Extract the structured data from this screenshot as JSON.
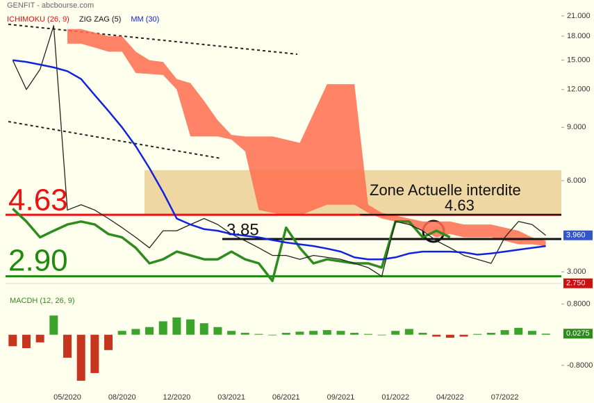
{
  "chart_data": {
    "type": "stock",
    "title": "GENFIT - abcbourse.com",
    "legend": [
      {
        "text": "ICHIMOKU (26, 9)",
        "color": "#dd1111"
      },
      {
        "text": "ZIG ZAG (5)",
        "color": "#111111"
      },
      {
        "text": "MM (30)",
        "color": "#1122dd"
      }
    ],
    "log_scale": true,
    "categories": [
      null,
      null,
      null,
      null,
      "05/2020",
      null,
      null,
      null,
      "08/2020",
      null,
      null,
      null,
      "12/2020",
      null,
      null,
      null,
      "03/2021",
      null,
      null,
      null,
      "06/2021",
      null,
      null,
      null,
      "09/2021",
      null,
      null,
      null,
      "01/2022",
      null,
      null,
      null,
      "04/2022",
      null,
      null,
      null,
      "07/2022",
      null,
      null,
      null
    ],
    "ylim": [
      2.79,
      23.7
    ],
    "yticks": [
      {
        "value": 3,
        "label": "3.000"
      },
      {
        "value": 6,
        "label": "6.000"
      },
      {
        "value": 9,
        "label": "9.000"
      },
      {
        "value": 12,
        "label": "12.000"
      },
      {
        "value": 15,
        "label": "15.000"
      },
      {
        "value": 18,
        "label": "18.000"
      },
      {
        "value": 21,
        "label": "21.000"
      }
    ],
    "series": [
      {
        "color": "#222222",
        "values": [
          15,
          12,
          14,
          19.5,
          4.8,
          5.0,
          4.8,
          4.5,
          4.2,
          3.9,
          3.6,
          4.1,
          4.1,
          4.3,
          4.5,
          4.3,
          4.0,
          3.8,
          3.6,
          3.4,
          3.4,
          3.3,
          3.4,
          3.35,
          3.3,
          3.2,
          3.1,
          2.9,
          4.4,
          4.3,
          4.1,
          3.8,
          3.6,
          3.4,
          3.3,
          3.2,
          3.9,
          4.4,
          4.3,
          3.96
        ]
      },
      {
        "color": "#1122dd",
        "values": [
          15,
          14.8,
          14.5,
          14.2,
          13.8,
          13.0,
          11.5,
          10.2,
          9.0,
          7.8,
          6.6,
          5.5,
          4.5,
          4.3,
          4.15,
          4.1,
          4.0,
          3.95,
          3.9,
          3.82,
          3.75,
          3.7,
          3.65,
          3.58,
          3.5,
          3.35,
          3.3,
          3.3,
          3.35,
          3.45,
          3.5,
          3.5,
          3.5,
          3.48,
          3.42,
          3.45,
          3.5,
          3.55,
          3.6,
          3.65
        ]
      },
      {
        "color": "#ff6f4f",
        "values": [
          null,
          null,
          null,
          null,
          19,
          19,
          18.5,
          18,
          18,
          16,
          15,
          14.8,
          13,
          12.6,
          11,
          9.5,
          8.5,
          8.4,
          8.4,
          8.4,
          8.2,
          8,
          10,
          12.5,
          12.5,
          12.5,
          5,
          4.7,
          4.6,
          4.5,
          4.4,
          4.4,
          4.4,
          4.3,
          4.3,
          4.3,
          4.2,
          4.1,
          3.9,
          3.8
        ],
        "lower": [
          null,
          null,
          null,
          null,
          17,
          17,
          16.5,
          16,
          16,
          13.6,
          13.5,
          13.4,
          12,
          8.4,
          8.4,
          8.4,
          8.2,
          7.5,
          4.8,
          4.7,
          4.6,
          4.6,
          4.8,
          5,
          5,
          5,
          4.7,
          4.5,
          4.4,
          4.3,
          4.1,
          3.9,
          4.0,
          3.9,
          3.9,
          3.9,
          3.8,
          3.7,
          3.7,
          3.65
        ]
      },
      {
        "color": "#2e8b1e",
        "values": [
          4.85,
          4.4,
          3.9,
          4.1,
          4.3,
          4.4,
          4.3,
          4.0,
          3.9,
          3.6,
          3.2,
          3.3,
          3.5,
          3.4,
          3.3,
          3.3,
          3.5,
          3.3,
          3.2,
          2.8,
          4.2,
          3.6,
          3.2,
          3.3,
          3.25,
          3.2,
          3.2,
          3.1,
          4.4,
          4.4,
          3.9,
          4.1,
          3.9,
          null,
          null,
          null,
          null,
          null,
          null,
          null
        ]
      }
    ],
    "levels": [
      {
        "label": "4.63",
        "value": 4.63,
        "color": "#ee1111"
      },
      {
        "label": "2.90",
        "value": 2.9,
        "color": "#1f8a10"
      },
      {
        "label": "3.85",
        "value": 3.85,
        "color": "#111111"
      },
      {
        "label": "4.63",
        "value": 4.63,
        "color": "#111111"
      }
    ],
    "zone": {
      "label": "Zone Actuelle interdite",
      "range": [
        4.65,
        6.5
      ]
    },
    "price_tags": [
      {
        "value": 3.96,
        "label": "3.960",
        "color": "#3355cc"
      },
      {
        "value": 2.75,
        "label": "2.750",
        "color": "#cc1111"
      }
    ],
    "macd": {
      "title": "MACDH (12, 26, 9)",
      "ylim": [
        -1.69,
        1.3
      ],
      "yticks": [
        {
          "value": 0.8,
          "label": "0.8000"
        },
        {
          "value": -0.8,
          "label": "-0.8000"
        }
      ],
      "values": [
        -0.3,
        -0.35,
        -0.2,
        0.5,
        -0.6,
        -1.2,
        -1.0,
        -0.4,
        0.1,
        0.15,
        0.2,
        0.35,
        0.45,
        0.4,
        0.3,
        0.2,
        0.1,
        0.05,
        0.02,
        0,
        0.05,
        0.08,
        0.1,
        0.12,
        0.1,
        0.05,
        0.02,
        0,
        0.1,
        0.15,
        0.05,
        -0.05,
        -0.08,
        -0.05,
        0.02,
        0.05,
        0.12,
        0.18,
        0.1,
        0.0275
      ],
      "last": {
        "value": 0.0275,
        "label": "0.0275"
      },
      "colors": {
        "positive": "#3aa52a",
        "negative": "#c8351e"
      }
    }
  }
}
